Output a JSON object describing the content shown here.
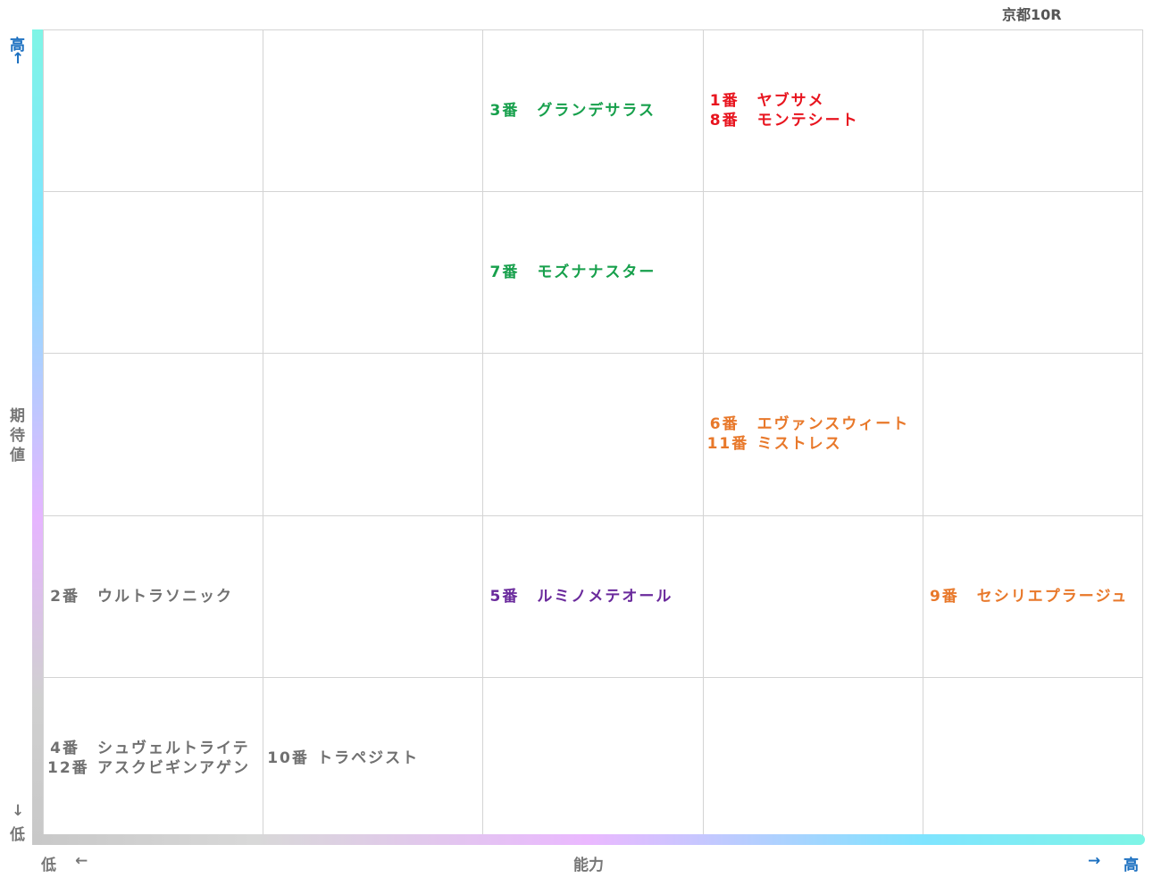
{
  "title": "京都10R",
  "y_axis": {
    "label": "期待値",
    "high": "高",
    "high_arrow": "↑",
    "low_arrow": "↓",
    "low": "低"
  },
  "x_axis": {
    "label": "能力",
    "low": "低",
    "low_arrow": "←",
    "high_arrow": "→",
    "high": "高"
  },
  "grid": {
    "rows": [
      [
        [],
        [],
        [
          {
            "number": "3番",
            "name": "グランデサラス",
            "color": "#17a04c"
          }
        ],
        [
          {
            "number": "1番",
            "name": "ヤブサメ",
            "color": "#e8141e"
          },
          {
            "number": "8番",
            "name": "モンテシート",
            "color": "#e8141e"
          }
        ],
        []
      ],
      [
        [],
        [],
        [
          {
            "number": "7番",
            "name": "モズナナスター",
            "color": "#17a04c"
          }
        ],
        [],
        []
      ],
      [
        [],
        [],
        [],
        [
          {
            "number": "6番",
            "name": "エヴァンスウィート",
            "color": "#e8782a"
          },
          {
            "number": "11番",
            "name": "ミストレス",
            "color": "#e8782a"
          }
        ],
        []
      ],
      [
        [
          {
            "number": "2番",
            "name": "ウルトラソニック",
            "color": "#707070"
          }
        ],
        [],
        [
          {
            "number": "5番",
            "name": "ルミノメテオール",
            "color": "#6a2a9c"
          }
        ],
        [],
        [
          {
            "number": "9番",
            "name": "セシリエプラージュ",
            "color": "#e8782a"
          }
        ]
      ],
      [
        [
          {
            "number": "4番",
            "name": "シュヴェルトライテ",
            "color": "#707070"
          },
          {
            "number": "12番",
            "name": "アスクビギンアゲン",
            "color": "#707070"
          }
        ],
        [
          {
            "number": "10番",
            "name": "トラペジスト",
            "color": "#707070"
          }
        ],
        [],
        [],
        []
      ]
    ]
  }
}
